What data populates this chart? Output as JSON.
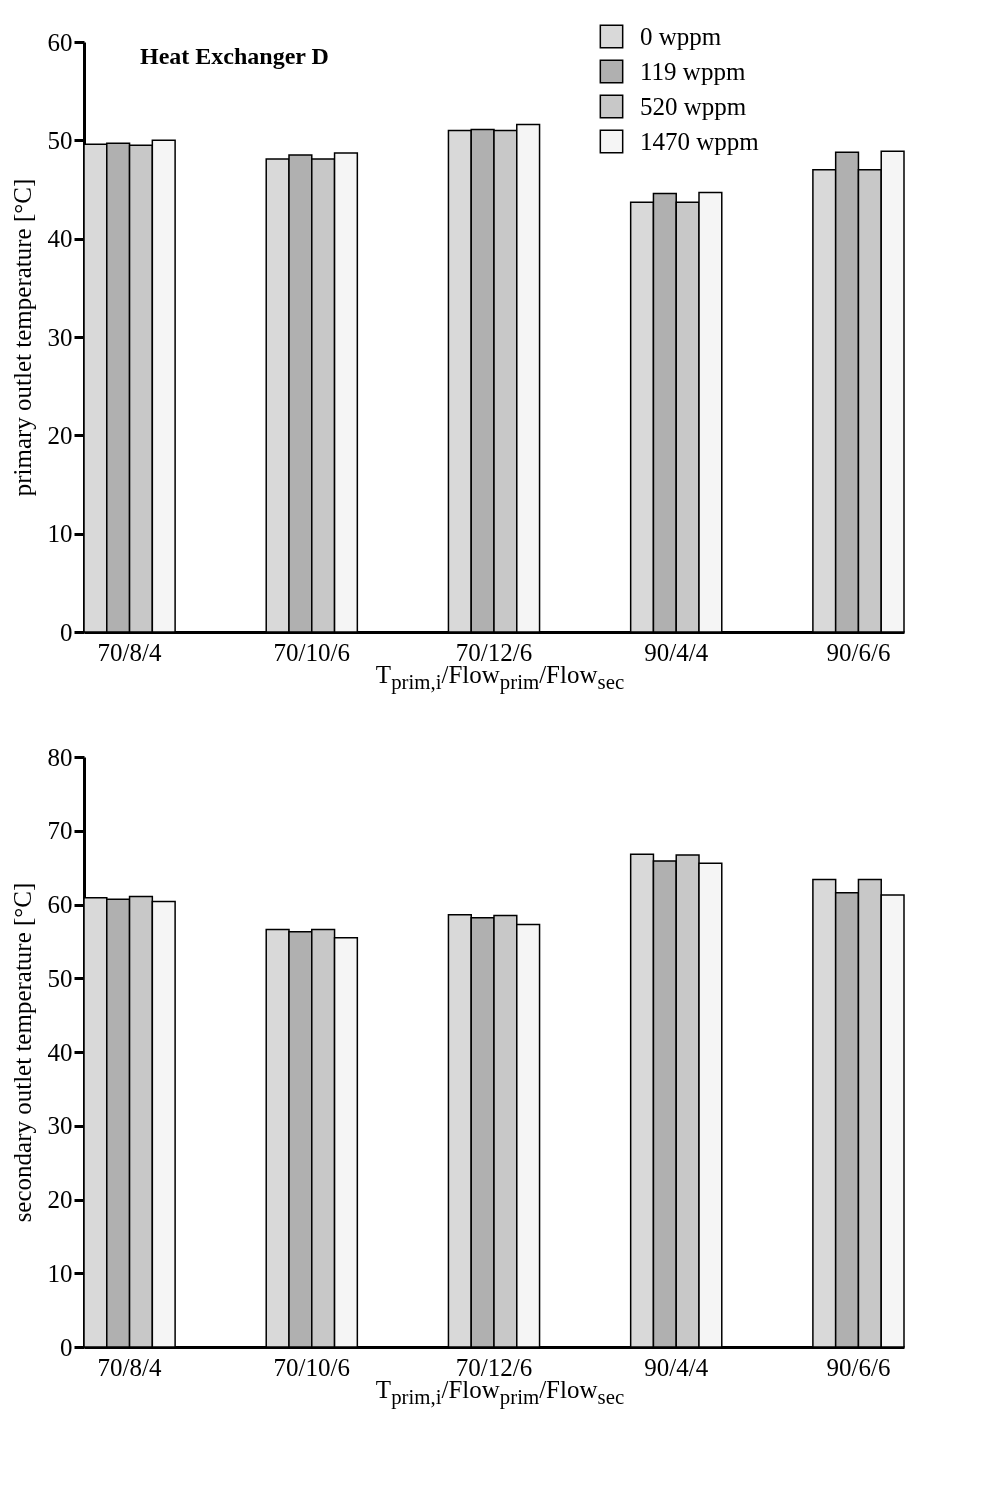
{
  "chart_data": [
    {
      "type": "bar",
      "title": "Heat Exchanger D",
      "xlabel": "T$_{prim,i}$/Flow$_{prim}$/Flow$_{sec}$",
      "ylabel": "primary outlet temperature [°C]",
      "categories": [
        "70/8/4",
        "70/10/6",
        "70/12/6",
        "90/4/4",
        "90/6/6"
      ],
      "series": [
        {
          "name": "0 wppm",
          "color": "#d9d9d9",
          "values": [
            49.6,
            48.1,
            51.0,
            43.7,
            47.0
          ]
        },
        {
          "name": "119 wppm",
          "color": "#b0b0b0",
          "values": [
            49.7,
            48.5,
            51.1,
            44.6,
            48.8
          ]
        },
        {
          "name": "520 wppm",
          "color": "#c8c8c8",
          "values": [
            49.5,
            48.1,
            51.0,
            43.7,
            47.0
          ]
        },
        {
          "name": "1470 wppm",
          "color": "#f5f5f5",
          "values": [
            50.0,
            48.7,
            51.6,
            44.7,
            48.9
          ]
        }
      ],
      "ylim": [
        0,
        60
      ],
      "yticks": [
        0,
        10,
        20,
        30,
        40,
        50,
        60
      ],
      "grid": false,
      "legend": "top right"
    },
    {
      "type": "bar",
      "xlabel": "T$_{prim,i}$/Flow$_{prim}$/Flow$_{sec}$",
      "ylabel": "secondary outlet temperature [°C]",
      "categories": [
        "70/8/4",
        "70/10/6",
        "70/12/6",
        "90/4/4",
        "90/6/6"
      ],
      "series": [
        {
          "color": "#d9d9d9",
          "values": [
            60.9,
            56.6,
            58.6,
            66.8,
            63.4
          ]
        },
        {
          "color": "#b0b0b0",
          "values": [
            60.7,
            56.3,
            58.2,
            65.9,
            61.6
          ]
        },
        {
          "color": "#c8c8c8",
          "values": [
            61.1,
            56.6,
            58.5,
            66.7,
            63.4
          ]
        },
        {
          "color": "#f5f5f5",
          "values": [
            60.4,
            55.5,
            57.3,
            65.6,
            61.3
          ]
        }
      ],
      "ylim": [
        0,
        80
      ],
      "yticks": [
        0,
        10,
        20,
        30,
        40,
        50,
        60,
        70,
        80
      ],
      "grid": false,
      "legend": false
    }
  ]
}
